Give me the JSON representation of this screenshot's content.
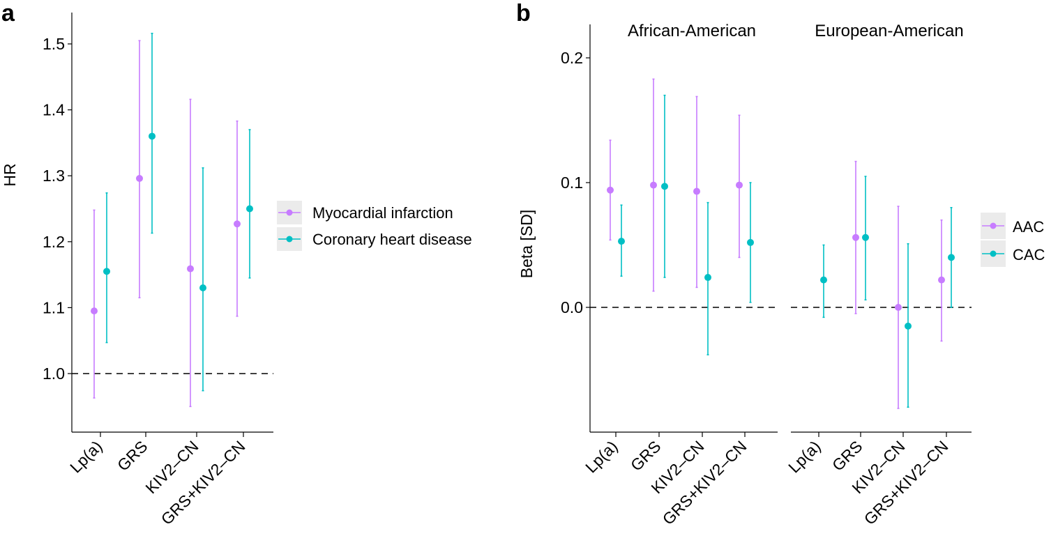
{
  "chart_data": [
    {
      "panel": "a",
      "type": "errorbar",
      "ylabel": "HR",
      "ylim": [
        0.92,
        1.54
      ],
      "yticks": [
        1.0,
        1.1,
        1.2,
        1.3,
        1.4,
        1.5
      ],
      "ytick_labels": [
        "1.0",
        "1.1",
        "1.2",
        "1.3",
        "1.4",
        "1.5"
      ],
      "reference_line": 1.0,
      "categories": [
        "Lp(a)",
        "GRS",
        "KIV2–CN",
        "GRS+KIV2–CN"
      ],
      "legend": "right",
      "series": [
        {
          "name": "Myocardial infarction",
          "color": "#c77cff",
          "values": [
            1.095,
            1.296,
            1.159,
            1.227
          ],
          "lower": [
            0.963,
            1.115,
            0.95,
            1.087
          ],
          "upper": [
            1.248,
            1.505,
            1.416,
            1.383
          ]
        },
        {
          "name": "Coronary heart disease",
          "color": "#00bfc4",
          "values": [
            1.155,
            1.36,
            1.13,
            1.25
          ],
          "lower": [
            1.047,
            1.213,
            0.974,
            1.145
          ],
          "upper": [
            1.274,
            1.516,
            1.312,
            1.37
          ]
        }
      ]
    },
    {
      "panel": "b",
      "type": "errorbar",
      "ylabel": "Beta [SD]",
      "ylim": [
        -0.099,
        0.212
      ],
      "yticks": [
        0.0,
        0.1,
        0.2
      ],
      "ytick_labels": [
        "0.0",
        "0.1",
        "0.2"
      ],
      "reference_line": 0.0,
      "categories": [
        "Lp(a)",
        "GRS",
        "KIV2–CN",
        "GRS+KIV2–CN"
      ],
      "legend": "right",
      "facets": [
        {
          "title": "African-American",
          "series": [
            {
              "name": "AAC",
              "color": "#c77cff",
              "values": [
                0.094,
                0.098,
                0.093,
                0.098
              ],
              "lower": [
                0.054,
                0.013,
                0.016,
                0.04
              ],
              "upper": [
                0.134,
                0.183,
                0.169,
                0.154
              ]
            },
            {
              "name": "CAC",
              "color": "#00bfc4",
              "values": [
                0.053,
                0.097,
                0.024,
                0.052
              ],
              "lower": [
                0.025,
                0.024,
                -0.038,
                0.004
              ],
              "upper": [
                0.082,
                0.17,
                0.084,
                0.1
              ]
            }
          ]
        },
        {
          "title": "European-American",
          "series": [
            {
              "name": "AAC",
              "color": "#c77cff",
              "values": [
                null,
                0.056,
                0.0,
                0.022
              ],
              "lower": [
                null,
                -0.005,
                -0.081,
                -0.027
              ],
              "upper": [
                null,
                0.117,
                0.081,
                0.07
              ]
            },
            {
              "name": "CAC",
              "color": "#00bfc4",
              "values": [
                0.022,
                0.056,
                -0.015,
                0.04
              ],
              "lower": [
                -0.008,
                0.006,
                -0.08,
                0.0
              ],
              "upper": [
                0.05,
                0.105,
                0.051,
                0.08
              ]
            }
          ]
        }
      ]
    }
  ]
}
